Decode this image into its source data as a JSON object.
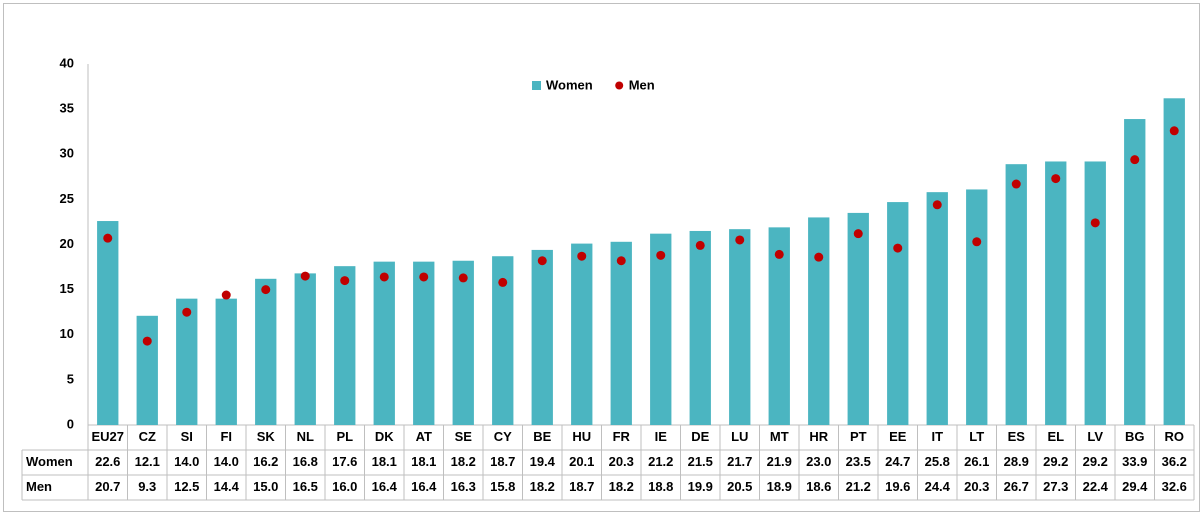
{
  "chart_data": {
    "type": "bar",
    "categories": [
      "EU27",
      "CZ",
      "SI",
      "FI",
      "SK",
      "NL",
      "PL",
      "DK",
      "AT",
      "SE",
      "CY",
      "BE",
      "HU",
      "FR",
      "IE",
      "DE",
      "LU",
      "MT",
      "HR",
      "PT",
      "EE",
      "IT",
      "LT",
      "ES",
      "EL",
      "LV",
      "BG",
      "RO"
    ],
    "series": [
      {
        "name": "Women",
        "color": "#4bb5c1",
        "marker": "bar",
        "values": [
          22.6,
          12.1,
          14.0,
          14.0,
          16.2,
          16.8,
          17.6,
          18.1,
          18.1,
          18.2,
          18.7,
          19.4,
          20.1,
          20.3,
          21.2,
          21.5,
          21.7,
          21.9,
          23.0,
          23.5,
          24.7,
          25.8,
          26.1,
          28.9,
          29.2,
          29.2,
          33.9,
          36.2
        ],
        "value_labels": [
          "22.6",
          "12.1",
          "14.0",
          "14.0",
          "16.2",
          "16.8",
          "17.6",
          "18.1",
          "18.1",
          "18.2",
          "18.7",
          "19.4",
          "20.1",
          "20.3",
          "21.2",
          "21.5",
          "21.7",
          "21.9",
          "23.0",
          "23.5",
          "24.7",
          "25.8",
          "26.1",
          "28.9",
          "29.2",
          "29.2",
          "33.9",
          "36.2"
        ]
      },
      {
        "name": "Men",
        "color": "#c00000",
        "marker": "dot",
        "values": [
          20.7,
          9.3,
          12.5,
          14.4,
          15.0,
          16.5,
          16.0,
          16.4,
          16.4,
          16.3,
          15.8,
          18.2,
          18.7,
          18.2,
          18.8,
          19.9,
          20.5,
          18.9,
          18.6,
          21.2,
          19.6,
          24.4,
          20.3,
          26.7,
          27.3,
          22.4,
          29.4,
          32.6
        ],
        "value_labels": [
          "20.7",
          "9.3",
          "12.5",
          "14.4",
          "15.0",
          "16.5",
          "16.0",
          "16.4",
          "16.4",
          "16.3",
          "15.8",
          "18.2",
          "18.7",
          "18.2",
          "18.8",
          "19.9",
          "20.5",
          "18.9",
          "18.6",
          "21.2",
          "19.6",
          "24.4",
          "20.3",
          "26.7",
          "27.3",
          "22.4",
          "29.4",
          "32.6"
        ]
      }
    ],
    "ylim": [
      0,
      40
    ],
    "yticks": [
      0,
      5,
      10,
      15,
      20,
      25,
      30,
      35,
      40
    ],
    "grid": false,
    "legend": "top"
  }
}
